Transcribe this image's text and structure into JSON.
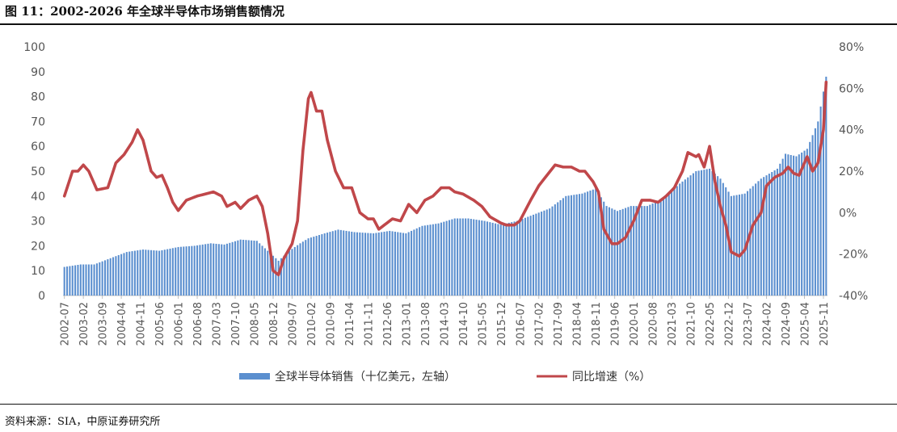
{
  "title": "图 11：2002-2026 年全球半导体市场销售额情况",
  "source": "资料来源：SIA，中原证券研究所",
  "colors": {
    "bars": "#5b8fcf",
    "line": "#c0474a"
  },
  "chart_data": {
    "type": "bar+line",
    "x_range": [
      "2002-07",
      "2025-12"
    ],
    "x_tick_labels": [
      "2002-07",
      "2003-02",
      "2003-09",
      "2004-04",
      "2004-11",
      "2005-06",
      "2006-01",
      "2006-08",
      "2007-03",
      "2007-10",
      "2008-05",
      "2008-12",
      "2009-07",
      "2010-02",
      "2010-09",
      "2011-04",
      "2011-11",
      "2012-06",
      "2013-01",
      "2013-08",
      "2014-03",
      "2014-10",
      "2015-05",
      "2015-12",
      "2016-07",
      "2017-02",
      "2017-09",
      "2018-04",
      "2018-11",
      "2019-06",
      "2020-01",
      "2020-08",
      "2021-03",
      "2021-10",
      "2022-05",
      "2022-12",
      "2023-07",
      "2024-02",
      "2024-09",
      "2025-04",
      "2025-11"
    ],
    "y_left": {
      "ticks": [
        "0",
        "10",
        "20",
        "30",
        "40",
        "50",
        "60",
        "70",
        "80",
        "90",
        "100"
      ],
      "range": [
        0,
        100
      ]
    },
    "y_right": {
      "ticks": [
        "-40%",
        "-20%",
        "0%",
        "20%",
        "40%",
        "60%",
        "80%"
      ],
      "range": [
        -40,
        80
      ]
    },
    "legend": {
      "position": "bottom"
    },
    "series": [
      {
        "name": "全球半导体销售（十亿美元，左轴）",
        "type": "bar",
        "axis": "left",
        "anchors": [
          [
            "2002-07",
            11.5
          ],
          [
            "2003-01",
            12.5
          ],
          [
            "2003-06",
            12.5
          ],
          [
            "2003-12",
            15
          ],
          [
            "2004-06",
            17.5
          ],
          [
            "2004-12",
            18.5
          ],
          [
            "2005-06",
            18
          ],
          [
            "2006-01",
            19.5
          ],
          [
            "2006-07",
            20
          ],
          [
            "2007-01",
            21
          ],
          [
            "2007-06",
            20.5
          ],
          [
            "2007-12",
            22.5
          ],
          [
            "2008-06",
            22
          ],
          [
            "2008-11",
            17
          ],
          [
            "2009-02",
            14
          ],
          [
            "2009-06",
            18
          ],
          [
            "2009-10",
            21
          ],
          [
            "2010-01",
            23
          ],
          [
            "2010-07",
            25
          ],
          [
            "2010-12",
            26.5
          ],
          [
            "2011-06",
            25.5
          ],
          [
            "2012-01",
            25
          ],
          [
            "2012-07",
            26
          ],
          [
            "2013-01",
            25
          ],
          [
            "2013-07",
            28
          ],
          [
            "2014-01",
            29
          ],
          [
            "2014-07",
            31
          ],
          [
            "2014-12",
            31
          ],
          [
            "2015-06",
            30
          ],
          [
            "2015-12",
            28.5
          ],
          [
            "2016-06",
            30
          ],
          [
            "2016-12",
            32.5
          ],
          [
            "2017-06",
            35
          ],
          [
            "2017-12",
            40
          ],
          [
            "2018-06",
            41
          ],
          [
            "2018-11",
            43
          ],
          [
            "2019-03",
            36
          ],
          [
            "2019-07",
            34
          ],
          [
            "2019-12",
            36
          ],
          [
            "2020-06",
            36
          ],
          [
            "2020-12",
            39
          ],
          [
            "2021-06",
            45
          ],
          [
            "2021-12",
            50
          ],
          [
            "2022-05",
            51
          ],
          [
            "2022-09",
            47
          ],
          [
            "2023-01",
            40
          ],
          [
            "2023-06",
            41
          ],
          [
            "2023-12",
            47
          ],
          [
            "2024-06",
            51
          ],
          [
            "2024-09",
            57
          ],
          [
            "2025-01",
            56
          ],
          [
            "2025-05",
            59
          ],
          [
            "2025-09",
            70
          ],
          [
            "2025-12",
            88
          ]
        ]
      },
      {
        "name": "同比增速（%）",
        "type": "line",
        "axis": "right",
        "anchors": [
          [
            "2002-07",
            8
          ],
          [
            "2002-10",
            20
          ],
          [
            "2002-12",
            20
          ],
          [
            "2003-02",
            23
          ],
          [
            "2003-04",
            20
          ],
          [
            "2003-07",
            11
          ],
          [
            "2003-11",
            12
          ],
          [
            "2004-02",
            24
          ],
          [
            "2004-05",
            28
          ],
          [
            "2004-08",
            34
          ],
          [
            "2004-10",
            40
          ],
          [
            "2004-12",
            35
          ],
          [
            "2005-03",
            20
          ],
          [
            "2005-05",
            17
          ],
          [
            "2005-07",
            18
          ],
          [
            "2005-09",
            12
          ],
          [
            "2005-11",
            5
          ],
          [
            "2006-01",
            1
          ],
          [
            "2006-04",
            6
          ],
          [
            "2006-08",
            8
          ],
          [
            "2006-11",
            9
          ],
          [
            "2007-02",
            10
          ],
          [
            "2007-05",
            8
          ],
          [
            "2007-07",
            3
          ],
          [
            "2007-10",
            5
          ],
          [
            "2007-12",
            2
          ],
          [
            "2008-03",
            6
          ],
          [
            "2008-06",
            8
          ],
          [
            "2008-08",
            3
          ],
          [
            "2008-10",
            -10
          ],
          [
            "2008-12",
            -28
          ],
          [
            "2009-02",
            -30
          ],
          [
            "2009-04",
            -22
          ],
          [
            "2009-07",
            -15
          ],
          [
            "2009-09",
            -4
          ],
          [
            "2009-11",
            30
          ],
          [
            "2010-01",
            55
          ],
          [
            "2010-02",
            58
          ],
          [
            "2010-04",
            49
          ],
          [
            "2010-06",
            49
          ],
          [
            "2010-08",
            35
          ],
          [
            "2010-11",
            20
          ],
          [
            "2011-02",
            12
          ],
          [
            "2011-05",
            12
          ],
          [
            "2011-08",
            0
          ],
          [
            "2011-11",
            -3
          ],
          [
            "2012-01",
            -3
          ],
          [
            "2012-03",
            -8
          ],
          [
            "2012-05",
            -6
          ],
          [
            "2012-08",
            -3
          ],
          [
            "2012-11",
            -4
          ],
          [
            "2013-02",
            4
          ],
          [
            "2013-05",
            0
          ],
          [
            "2013-08",
            6
          ],
          [
            "2013-11",
            8
          ],
          [
            "2014-02",
            12
          ],
          [
            "2014-05",
            12
          ],
          [
            "2014-07",
            10
          ],
          [
            "2014-10",
            9
          ],
          [
            "2015-02",
            6
          ],
          [
            "2015-05",
            3
          ],
          [
            "2015-08",
            -2
          ],
          [
            "2015-12",
            -5
          ],
          [
            "2016-02",
            -6
          ],
          [
            "2016-05",
            -6
          ],
          [
            "2016-07",
            -4
          ],
          [
            "2016-11",
            6
          ],
          [
            "2017-02",
            13
          ],
          [
            "2017-05",
            18
          ],
          [
            "2017-08",
            23
          ],
          [
            "2017-11",
            22
          ],
          [
            "2018-02",
            22
          ],
          [
            "2018-05",
            20
          ],
          [
            "2018-07",
            20
          ],
          [
            "2018-10",
            15
          ],
          [
            "2018-12",
            10
          ],
          [
            "2019-02",
            -8
          ],
          [
            "2019-05",
            -15
          ],
          [
            "2019-07",
            -15
          ],
          [
            "2019-10",
            -12
          ],
          [
            "2020-01",
            -4
          ],
          [
            "2020-04",
            6
          ],
          [
            "2020-07",
            6
          ],
          [
            "2020-10",
            5
          ],
          [
            "2021-01",
            8
          ],
          [
            "2021-04",
            12
          ],
          [
            "2021-07",
            20
          ],
          [
            "2021-09",
            29
          ],
          [
            "2021-12",
            27
          ],
          [
            "2022-01",
            28
          ],
          [
            "2022-03",
            22
          ],
          [
            "2022-05",
            32
          ],
          [
            "2022-07",
            15
          ],
          [
            "2022-09",
            3
          ],
          [
            "2022-11",
            -6
          ],
          [
            "2023-01",
            -19
          ],
          [
            "2023-04",
            -21
          ],
          [
            "2023-06",
            -18
          ],
          [
            "2023-09",
            -6
          ],
          [
            "2023-12",
            0
          ],
          [
            "2024-02",
            13
          ],
          [
            "2024-05",
            17
          ],
          [
            "2024-08",
            19
          ],
          [
            "2024-10",
            22
          ],
          [
            "2024-12",
            19
          ],
          [
            "2025-02",
            18
          ],
          [
            "2025-05",
            27
          ],
          [
            "2025-07",
            20
          ],
          [
            "2025-09",
            24
          ],
          [
            "2025-11",
            40
          ],
          [
            "2025-12",
            63
          ]
        ]
      }
    ]
  }
}
